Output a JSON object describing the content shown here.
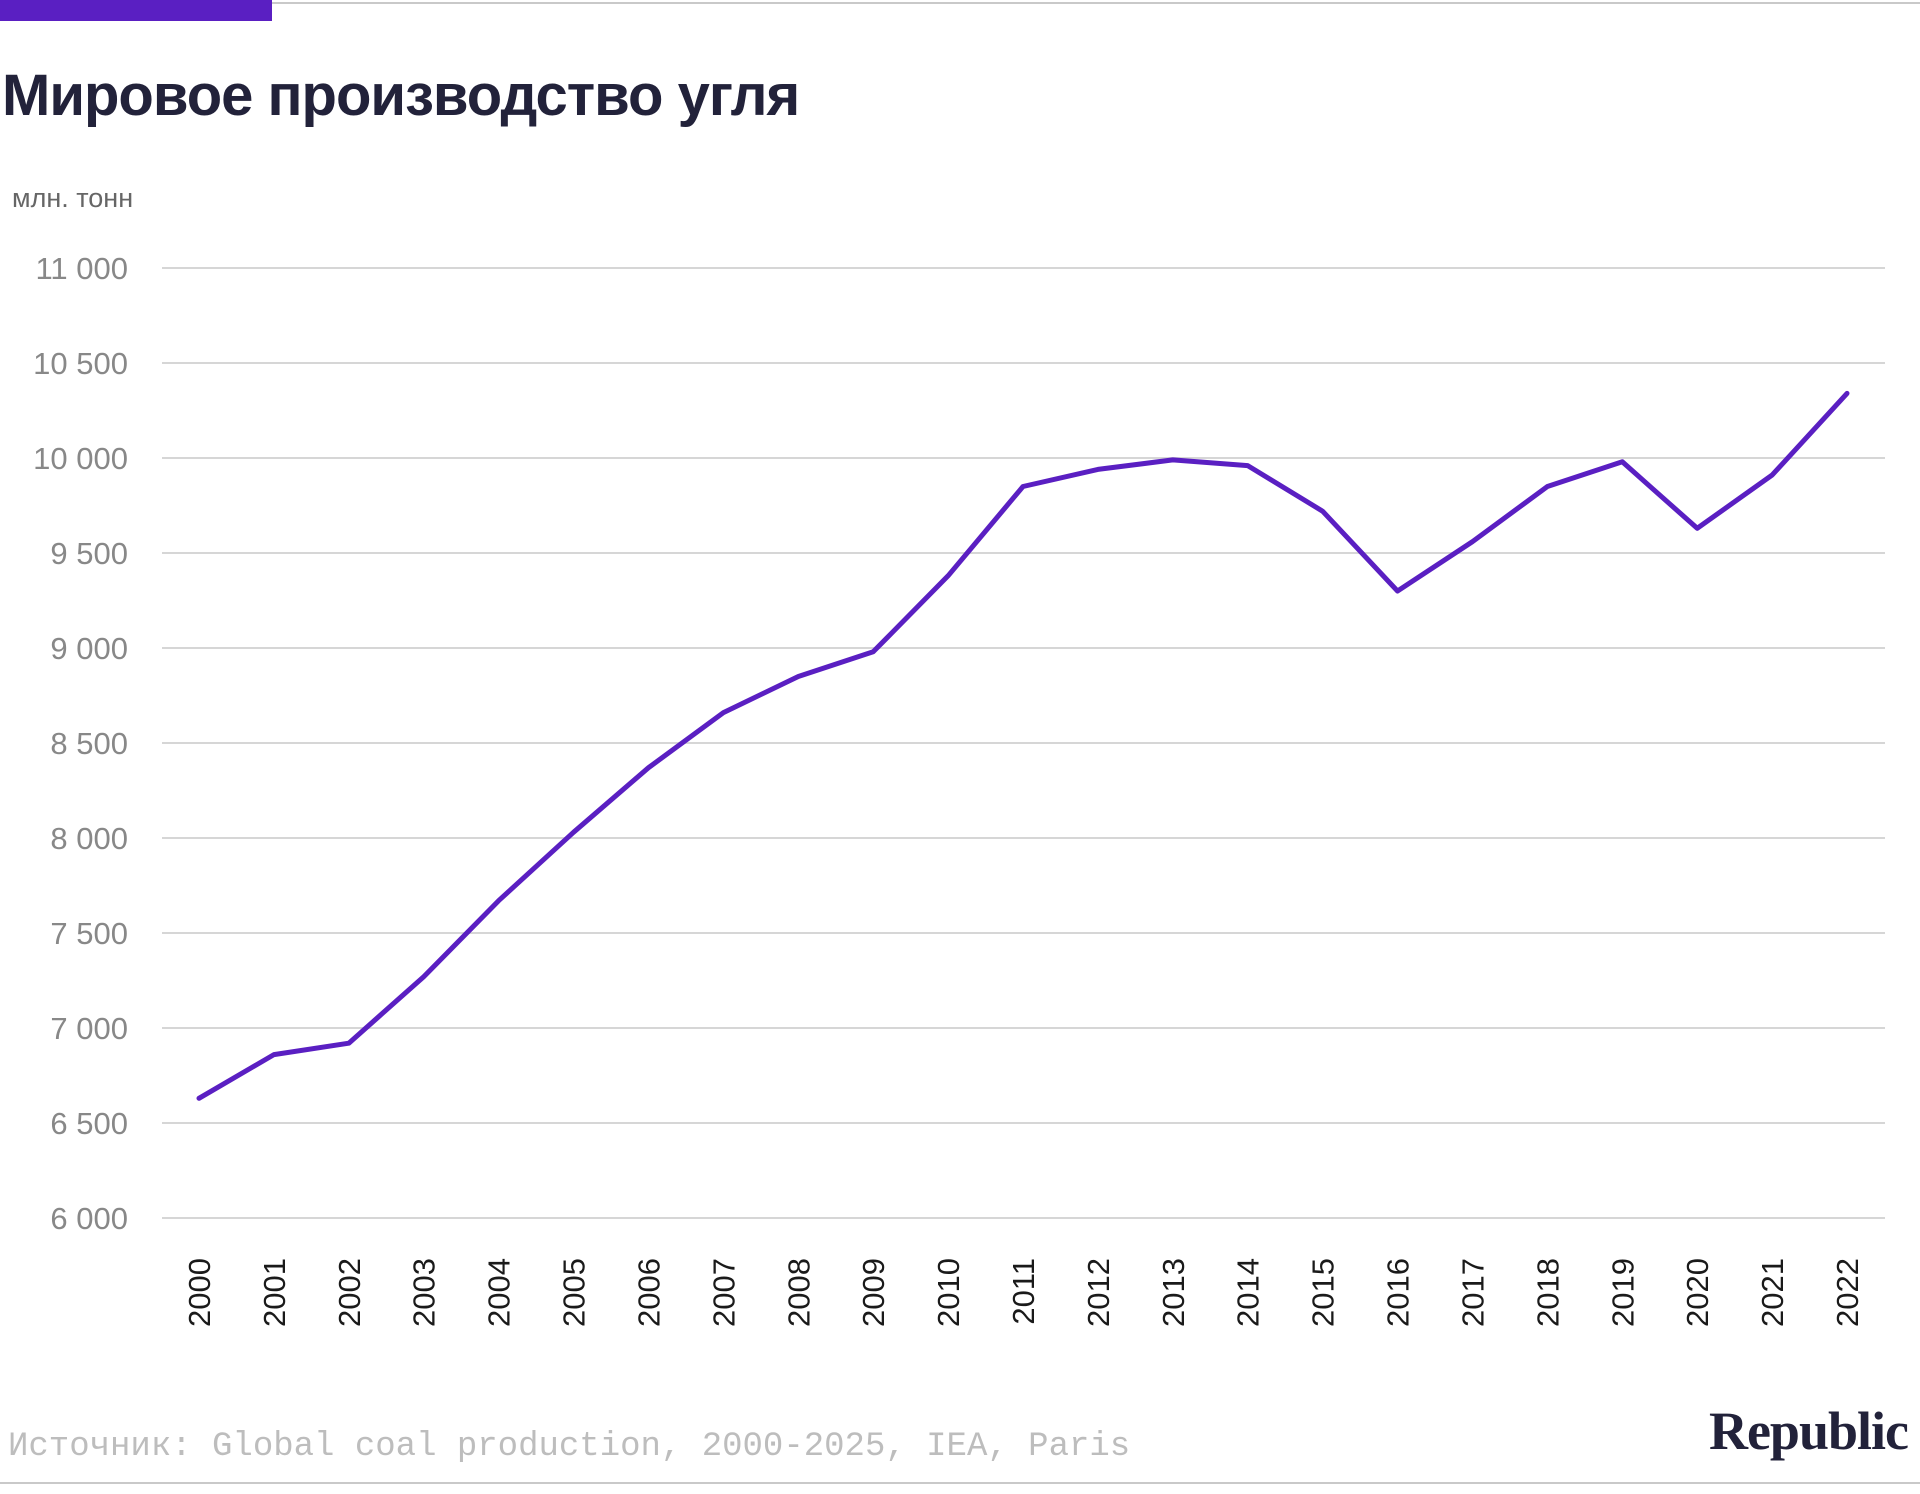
{
  "title": "Мировое производство угля",
  "source": "Источник: Global coal production, 2000-2025, IEA, Paris",
  "logo": "Republic",
  "colors": {
    "accent": "#5a1fc2",
    "grid": "#d6d6d6",
    "title": "#22223a"
  },
  "chart_data": {
    "type": "line",
    "title": "Мировое производство угля",
    "unit_label": "млн. тонн",
    "x": [
      "2000",
      "2001",
      "2002",
      "2003",
      "2004",
      "2005",
      "2006",
      "2007",
      "2008",
      "2009",
      "2010",
      "2011",
      "2012",
      "2013",
      "2014",
      "2015",
      "2016",
      "2017",
      "2018",
      "2019",
      "2020",
      "2021",
      "2022"
    ],
    "series": [
      {
        "values": [
          6630,
          6860,
          6920,
          7270,
          7670,
          8030,
          8370,
          8660,
          8850,
          8980,
          9380,
          9850,
          9940,
          9990,
          9960,
          9720,
          9300,
          9560,
          9850,
          9980,
          9630,
          9910,
          10340
        ]
      }
    ],
    "y_ticks": [
      6000,
      6500,
      7000,
      7500,
      8000,
      8500,
      9000,
      9500,
      10000,
      10500,
      11000
    ],
    "y_tick_labels": [
      "6 000",
      "6 500",
      "7 000",
      "7 500",
      "8 000",
      "8 500",
      "9 000",
      "9 500",
      "10 000",
      "10 500",
      "11 000"
    ],
    "ylim": [
      6000,
      11000
    ],
    "grid": true,
    "legend": "none"
  }
}
